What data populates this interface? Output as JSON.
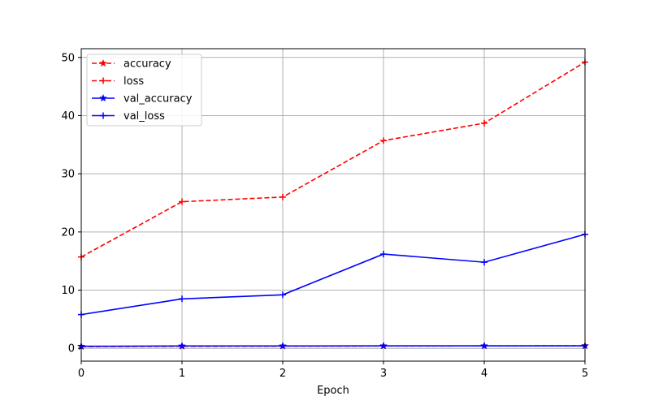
{
  "chart_data": {
    "type": "line",
    "title": "",
    "xlabel": "Epoch",
    "ylabel": "",
    "x": [
      0,
      1,
      2,
      3,
      4,
      5
    ],
    "xlim": [
      0,
      5
    ],
    "ylim": [
      -2.2,
      51.5
    ],
    "xticks": [
      "0",
      "1",
      "2",
      "3",
      "4",
      "5"
    ],
    "yticks": [
      0,
      10,
      20,
      30,
      40,
      50
    ],
    "ytick_labels": [
      "0",
      "10",
      "20",
      "30",
      "40",
      "50"
    ],
    "grid": true,
    "legend_position": "top-left",
    "series": [
      {
        "name": "accuracy",
        "color": "#ff0000",
        "dash": "dashed",
        "marker": "star",
        "values": [
          0.3,
          0.35,
          0.38,
          0.4,
          0.42,
          0.45
        ]
      },
      {
        "name": "loss",
        "color": "#ff0000",
        "dash": "dashed",
        "marker": "plus",
        "values": [
          15.7,
          25.2,
          26.0,
          35.7,
          38.7,
          49.2
        ]
      },
      {
        "name": "val_accuracy",
        "color": "#0000ff",
        "dash": "solid",
        "marker": "star",
        "values": [
          0.35,
          0.4,
          0.4,
          0.42,
          0.42,
          0.42
        ]
      },
      {
        "name": "val_loss",
        "color": "#0000ff",
        "dash": "solid",
        "marker": "plus",
        "values": [
          5.8,
          8.5,
          9.2,
          16.2,
          14.8,
          19.6
        ]
      }
    ]
  }
}
